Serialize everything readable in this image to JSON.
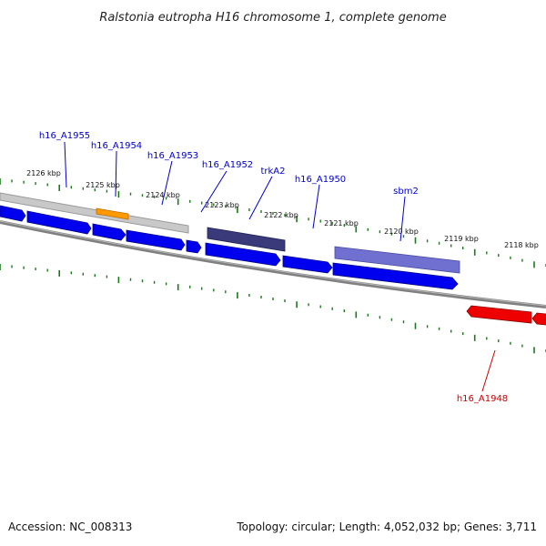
{
  "title": "Ralstonia eutropha H16 chromosome 1, complete genome",
  "footer": {
    "accession": "Accession: NC_008313",
    "summary": "Topology: circular; Length: 4,052,032 bp; Genes: 3,711"
  },
  "colors": {
    "forward_cds": "#0000ee",
    "reverse_cds": "#ee0000",
    "backbone": "#808080",
    "gc_band": "#c0c0c0",
    "ticks": "#1a7a1a",
    "operon_dark": "#3a3a7a",
    "operon_light": "#7070d0",
    "highlight": "#ff9900",
    "forward_label": "#0000cc",
    "reverse_label": "#cc0000"
  },
  "ticks": [
    {
      "label": "2126 kbp"
    },
    {
      "label": "2125 kbp"
    },
    {
      "label": "2124 kbp"
    },
    {
      "label": "2123 kbp"
    },
    {
      "label": "2122 kbp"
    },
    {
      "label": "2121 kbp"
    },
    {
      "label": "2120 kbp"
    },
    {
      "label": "2119 kbp"
    },
    {
      "label": "2118 kbp"
    }
  ],
  "genes": {
    "forward": [
      {
        "label": "h16_A1955"
      },
      {
        "label": "h16_A1954"
      },
      {
        "label": "h16_A1953"
      },
      {
        "label": "h16_A1952"
      },
      {
        "label": "trkA2"
      },
      {
        "label": "h16_A1950"
      },
      {
        "label": "sbm2"
      }
    ],
    "reverse": [
      {
        "label": "h16_A1948"
      }
    ]
  }
}
